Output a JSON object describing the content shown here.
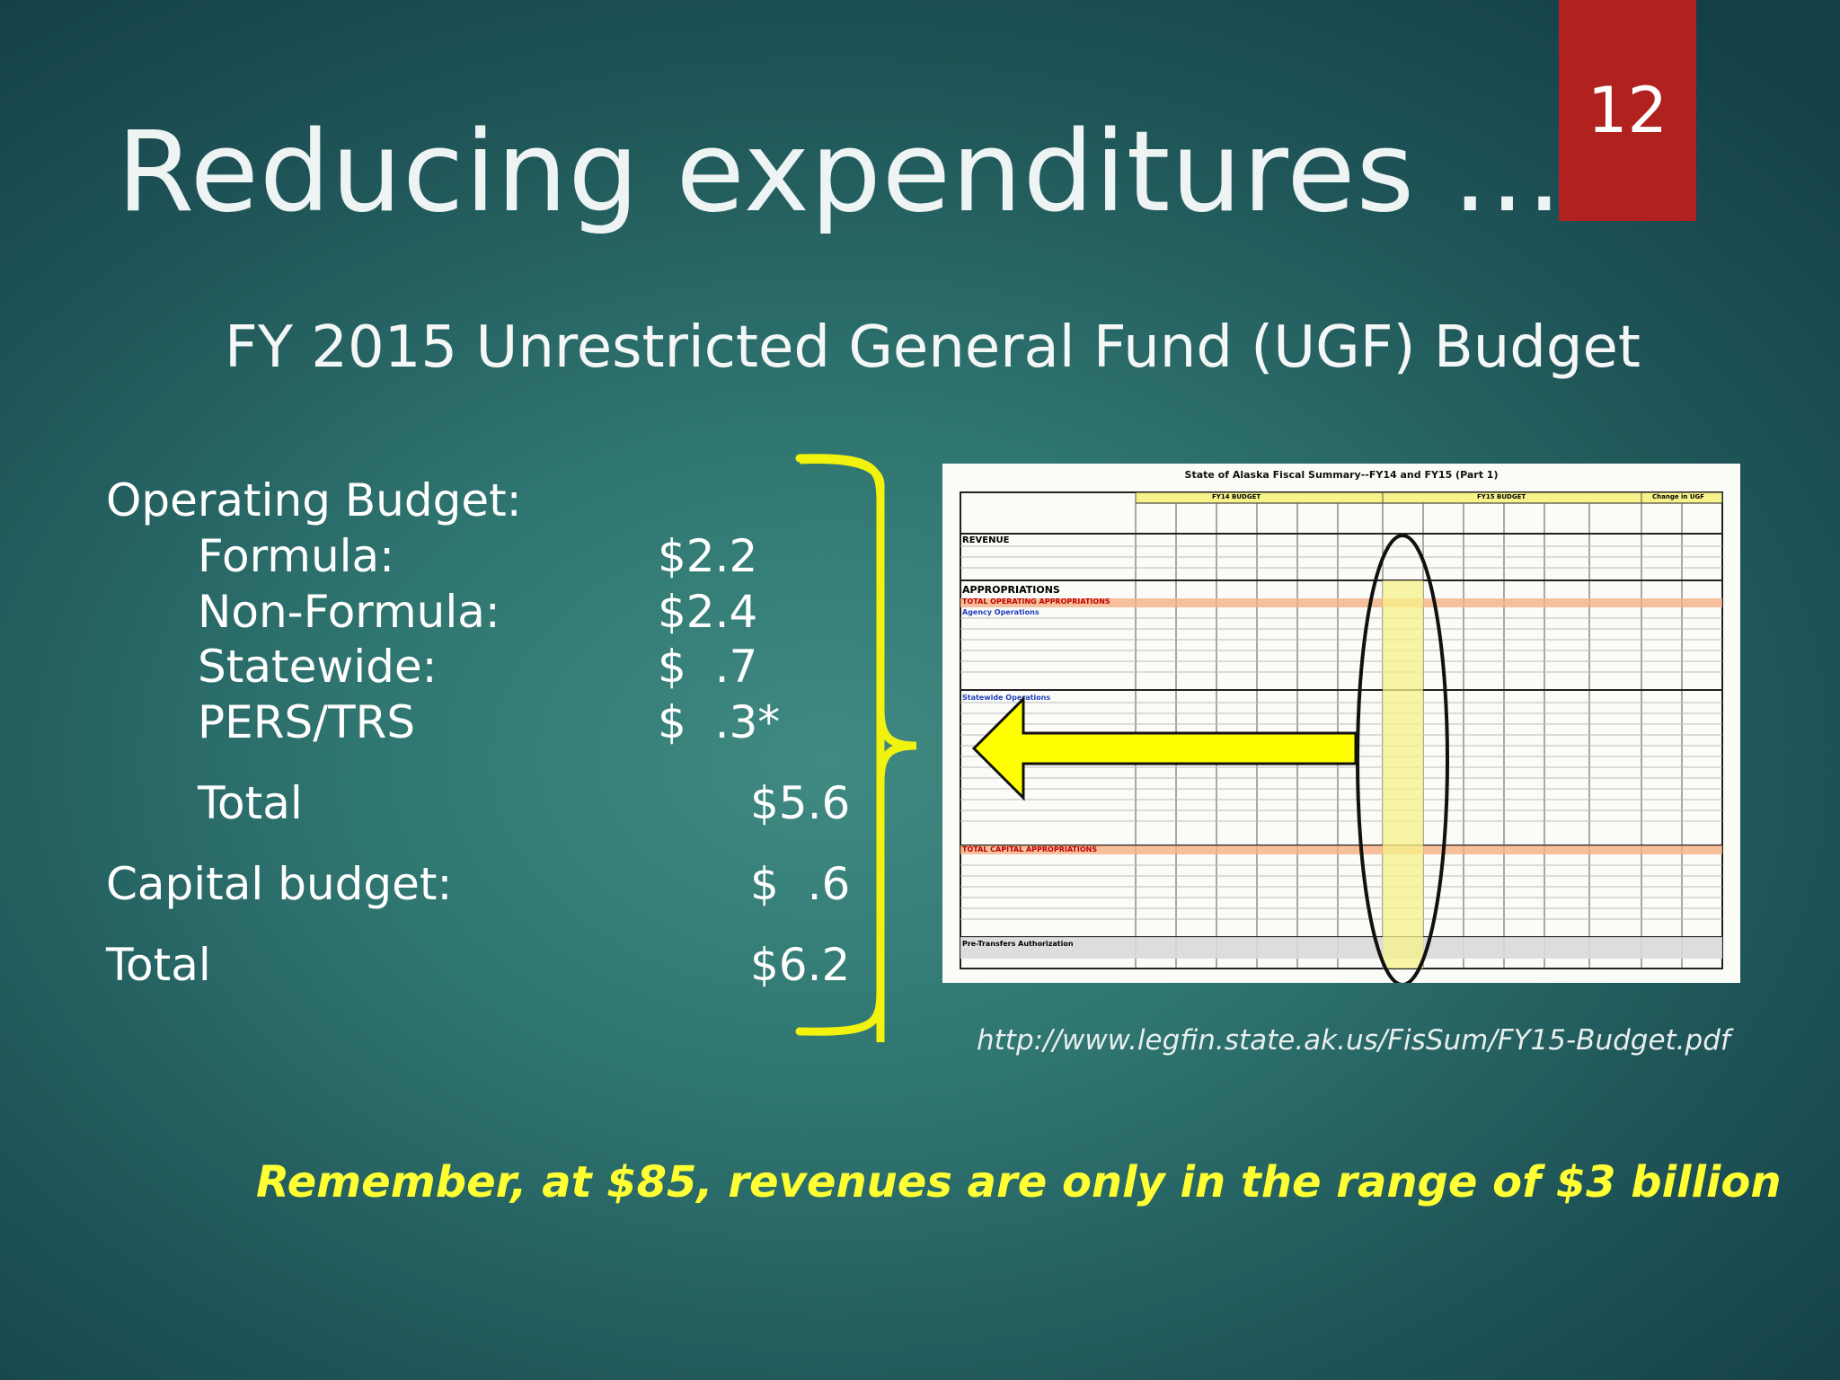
{
  "slide_number": "12",
  "title": "Reducing expenditures …",
  "subtitle": "FY 2015 Unrestricted General Fund (UGF) Budget",
  "budget": {
    "operating_label": "Operating Budget:",
    "items": [
      {
        "label": "Formula:",
        "value": "$2.2"
      },
      {
        "label": "Non-Formula:",
        "value": "$2.4"
      },
      {
        "label": "Statewide:",
        "value": "$  .7"
      },
      {
        "label": "PERS/TRS",
        "value": "$  .3*"
      }
    ],
    "operating_total_label": "Total",
    "operating_total_value": "$5.6",
    "capital_label": "Capital budget:",
    "capital_value": "$  .6",
    "grand_total_label": "Total",
    "grand_total_value": "$6.2"
  },
  "table_image": {
    "title": "State of Alaska Fiscal Summary--FY14 and FY15 (Part 1)",
    "sections": [
      "REVENUE",
      "APPROPRIATIONS",
      "TOTAL OPERATING APPROPRIATIONS",
      "Agency Operations",
      "Statewide Operations",
      "TOTAL CAPITAL APPROPRIATIONS",
      "Pre-Transfers Authorization"
    ],
    "header_groups": [
      "FY14 BUDGET",
      "FY15 BUDGET",
      "Change in UGF"
    ]
  },
  "source_url": "http://www.legfin.state.ak.us/FisSum/FY15-Budget.pdf",
  "reminder": "Remember, at $85, revenues are only in the range of $3 billion",
  "colors": {
    "accent_red": "#b0211f",
    "highlight_yellow": "#ffff33",
    "bracket_yellow": "#f2f20f"
  }
}
